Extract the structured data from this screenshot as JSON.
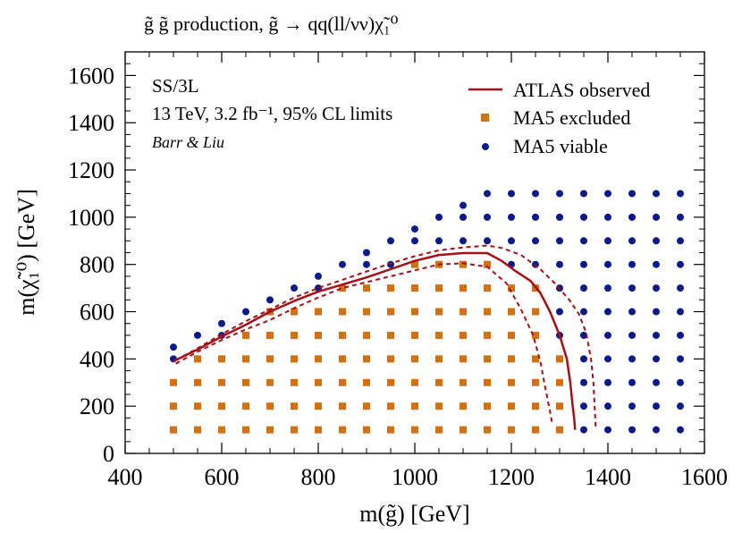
{
  "chart_data": {
    "type": "scatter",
    "title": "g̃ g̃ production, g̃ → qq(ll/νν)χ̃₁⁰",
    "xlabel": "m(g̃) [GeV]",
    "ylabel": "m(χ̃₁⁰) [GeV]",
    "xlim": [
      400,
      1600
    ],
    "ylim": [
      0,
      1700
    ],
    "xticks": [
      400,
      600,
      800,
      1000,
      1200,
      1400,
      1600
    ],
    "yticks": [
      0,
      200,
      400,
      600,
      800,
      1000,
      1200,
      1400,
      1600
    ],
    "xtick_labels": [
      "400",
      "600",
      "800",
      "1000",
      "1200",
      "1400",
      "1600"
    ],
    "ytick_labels": [
      "0",
      "200",
      "400",
      "600",
      "800",
      "1000",
      "1200",
      "1400",
      "1600"
    ],
    "grid": false,
    "legend_position": "top-right",
    "annotations": [
      "SS/3L",
      "13 TeV, 3.2 fb⁻¹, 95% CL limits",
      "Barr & Liu"
    ],
    "colors": {
      "observed": "#a50f15",
      "excluded": "#d4700f",
      "viable": "#0a1a8c"
    },
    "grid_points": {
      "x": [
        500,
        550,
        600,
        650,
        700,
        750,
        800,
        850,
        900,
        950,
        1000,
        1050,
        1100,
        1150,
        1200,
        1250,
        1300,
        1350,
        1400,
        1450,
        1500,
        1550
      ],
      "y_step": 100,
      "y_start": 100,
      "y_top": [
        450,
        500,
        550,
        600,
        650,
        700,
        750,
        800,
        850,
        900,
        950,
        1000,
        1050,
        1100,
        1100,
        1100,
        1100,
        1100,
        1100,
        1100,
        1100,
        1100
      ]
    },
    "series": [
      {
        "name": "ATLAS observed",
        "type": "line",
        "style": "solid",
        "x": [
          500,
          550,
          600,
          650,
          700,
          750,
          800,
          850,
          900,
          950,
          1000,
          1050,
          1100,
          1150,
          1180,
          1210,
          1240,
          1260,
          1280,
          1300,
          1315,
          1322,
          1327,
          1330,
          1332
        ],
        "y": [
          390,
          440,
          495,
          545,
          600,
          645,
          685,
          715,
          745,
          780,
          815,
          840,
          848,
          848,
          815,
          770,
          730,
          680,
          600,
          500,
          400,
          300,
          200,
          150,
          100
        ]
      },
      {
        "name": "",
        "type": "line",
        "style": "dashed",
        "x": [
          505,
          550,
          600,
          650,
          700,
          750,
          800,
          850,
          900,
          950,
          1000,
          1050,
          1100,
          1150,
          1190,
          1220,
          1245,
          1260,
          1270,
          1280,
          1285
        ],
        "y": [
          380,
          430,
          480,
          525,
          565,
          615,
          660,
          700,
          725,
          750,
          775,
          800,
          805,
          790,
          720,
          610,
          500,
          390,
          280,
          180,
          120
        ]
      },
      {
        "name": "",
        "type": "line",
        "style": "dashed",
        "x": [
          505,
          550,
          600,
          650,
          700,
          750,
          800,
          850,
          900,
          950,
          1000,
          1050,
          1100,
          1150,
          1180,
          1220,
          1260,
          1290,
          1320,
          1340,
          1355,
          1365,
          1370,
          1375
        ],
        "y": [
          395,
          445,
          505,
          560,
          610,
          660,
          700,
          735,
          770,
          805,
          835,
          860,
          872,
          880,
          870,
          840,
          780,
          720,
          650,
          590,
          510,
          400,
          300,
          100
        ]
      },
      {
        "name": "MA5 excluded",
        "type": "scatter",
        "marker": "square",
        "rule": "inside the observed contour"
      },
      {
        "name": "MA5 viable",
        "type": "scatter",
        "marker": "circle",
        "rule": "outside the observed contour"
      }
    ]
  }
}
